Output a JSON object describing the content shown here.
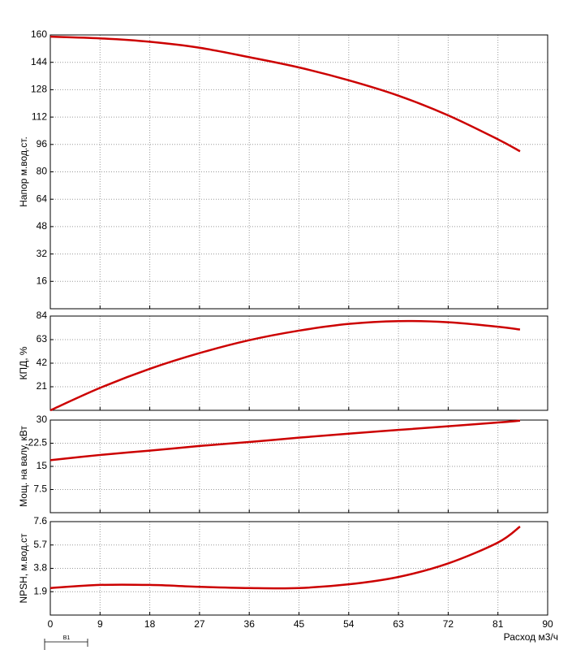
{
  "chart_data": [
    {
      "type": "line",
      "y_label": "Напор м.вод.ст.",
      "x": [
        0,
        9,
        18,
        27,
        36,
        45,
        54,
        63,
        72,
        81,
        85
      ],
      "series": [
        {
          "name": "Напор",
          "color": "#cc0000",
          "values": [
            159,
            158,
            156,
            152.5,
            147,
            141,
            133.5,
            124.5,
            113,
            99,
            92
          ]
        }
      ],
      "xlim": [
        0,
        90
      ],
      "xticks": [
        0,
        9,
        18,
        27,
        36,
        45,
        54,
        63,
        72,
        81,
        90
      ],
      "ylim": [
        0,
        160
      ],
      "yticks": [
        16,
        32,
        48,
        64,
        80,
        96,
        112,
        128,
        144,
        160
      ],
      "grid": true
    },
    {
      "type": "line",
      "y_label": "КПД, %",
      "x": [
        0,
        9,
        18,
        27,
        36,
        45,
        54,
        63,
        72,
        81,
        85
      ],
      "series": [
        {
          "name": "КПД",
          "color": "#cc0000",
          "values": [
            0,
            20,
            37,
            51,
            62.5,
            71,
            77,
            79.5,
            78.5,
            74.5,
            72
          ]
        }
      ],
      "xlim": [
        0,
        90
      ],
      "xticks": [
        0,
        9,
        18,
        27,
        36,
        45,
        54,
        63,
        72,
        81,
        90
      ],
      "ylim": [
        0,
        84
      ],
      "yticks": [
        21,
        42,
        63,
        84
      ],
      "grid": true
    },
    {
      "type": "line",
      "y_label": "Мощ. на валу, кВт",
      "x": [
        0,
        9,
        18,
        27,
        36,
        45,
        54,
        63,
        72,
        81,
        85
      ],
      "series": [
        {
          "name": "Мощность",
          "color": "#cc0000",
          "values": [
            17,
            18.7,
            20.1,
            21.6,
            22.9,
            24.3,
            25.6,
            26.8,
            28,
            29.2,
            29.8
          ]
        }
      ],
      "xlim": [
        0,
        90
      ],
      "xticks": [
        0,
        9,
        18,
        27,
        36,
        45,
        54,
        63,
        72,
        81,
        90
      ],
      "ylim": [
        0,
        30
      ],
      "yticks": [
        7.5,
        15,
        22.5,
        30
      ],
      "grid": true
    },
    {
      "type": "line",
      "y_label": "NPSH, м.вод.ст",
      "x_label": "Расход м3/ч",
      "marker_label": "В1",
      "x": [
        0,
        9,
        18,
        27,
        36,
        45,
        54,
        63,
        72,
        81,
        85
      ],
      "series": [
        {
          "name": "NPSH",
          "color": "#cc0000",
          "values": [
            2.2,
            2.45,
            2.45,
            2.3,
            2.2,
            2.2,
            2.5,
            3.1,
            4.2,
            5.9,
            7.2
          ]
        }
      ],
      "xlim": [
        0,
        90
      ],
      "xticks": [
        0,
        9,
        18,
        27,
        36,
        45,
        54,
        63,
        72,
        81,
        90
      ],
      "ylim": [
        0,
        7.6
      ],
      "yticks": [
        1.9,
        3.8,
        5.7,
        7.6
      ],
      "grid": true
    }
  ]
}
